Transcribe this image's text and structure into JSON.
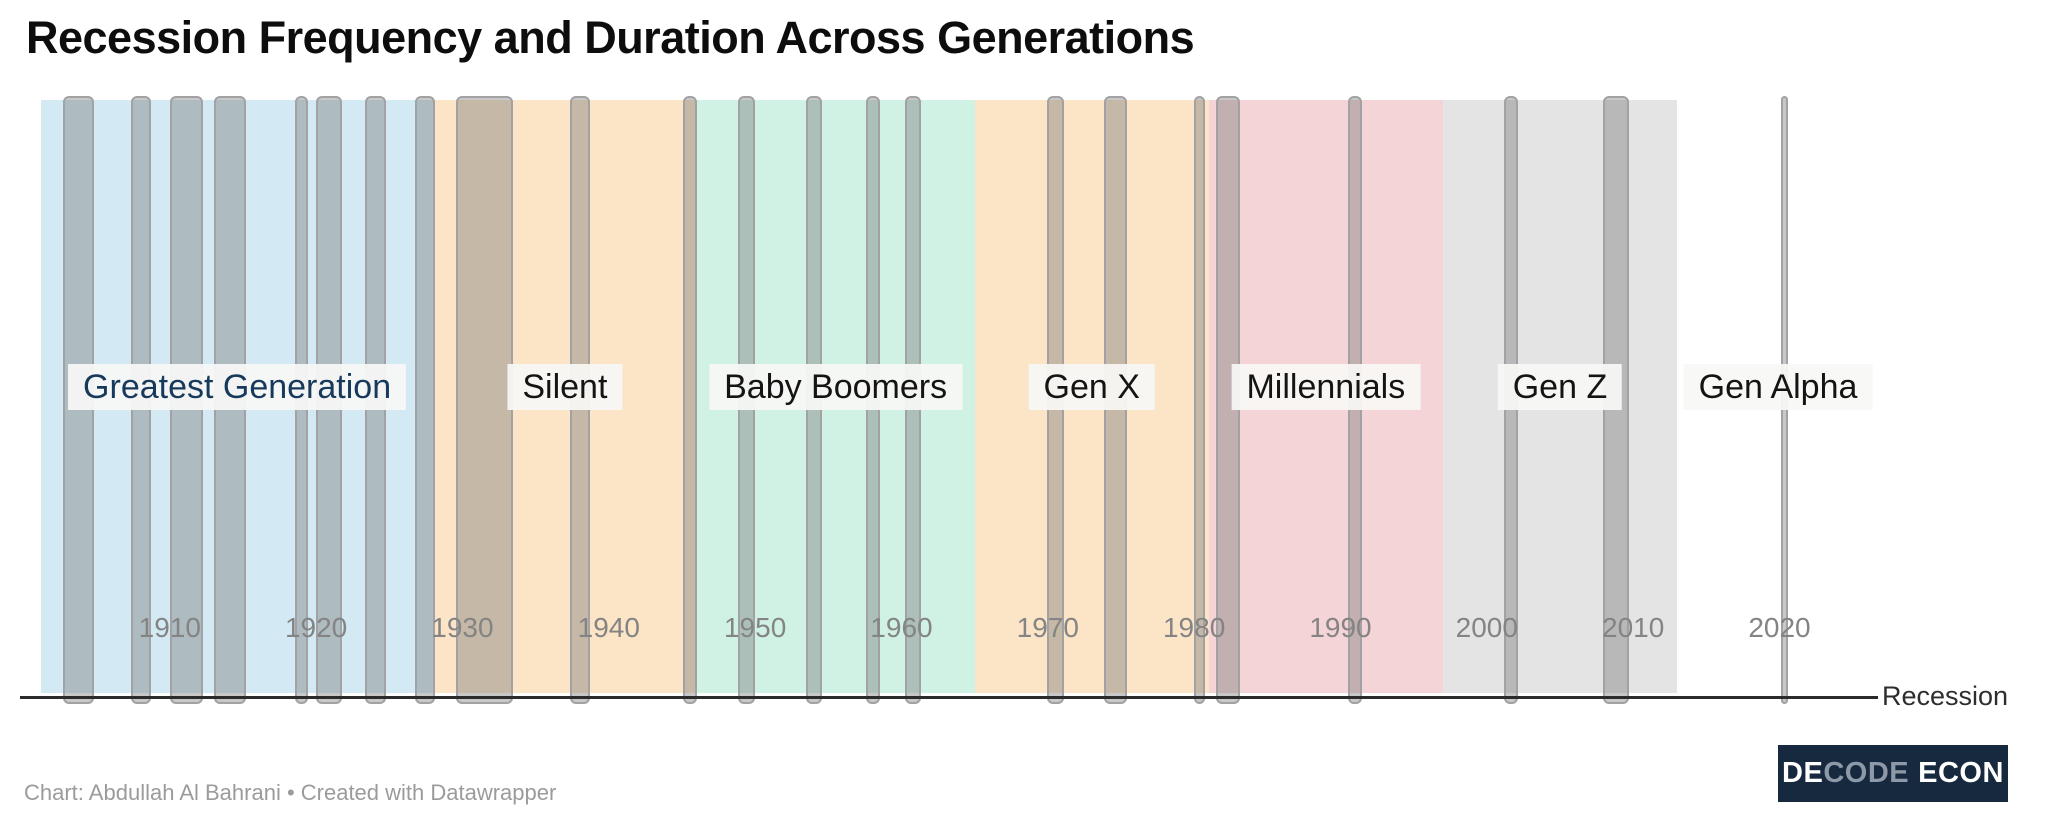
{
  "title": "Recession Frequency and Duration Across Generations",
  "footer": {
    "credit": "Chart: Abdullah Al Bahrani • Created with Datawrapper"
  },
  "logo": {
    "part_de": "DE",
    "part_code": "CODE",
    "part_econ": "ECON",
    "background": "#16293f"
  },
  "chart_data": {
    "type": "bar",
    "subtype": "timeline-span-chart",
    "title": "Recession Frequency and Duration Across Generations",
    "series_label": "Recession",
    "x_domain": [
      1901.2,
      2026.8
    ],
    "x_ticks": [
      1910,
      1920,
      1930,
      1940,
      1950,
      1960,
      1970,
      1980,
      1990,
      2000,
      2010,
      2020
    ],
    "grid": false,
    "legend_position": "axis-end-right",
    "recession_style": {
      "fill": "rgba(125,125,125,0.42)",
      "border": "#a2a2a4"
    },
    "generations": [
      {
        "name": "greatest-generation",
        "label": "Greatest Generation",
        "start": 1901,
        "end": 1928,
        "band_color": "#d3e9f3",
        "label_color": "#16395c"
      },
      {
        "name": "silent",
        "label": "Silent",
        "start": 1928,
        "end": 1946,
        "band_color": "#fce4c7",
        "label_color": "#141414"
      },
      {
        "name": "baby-boomers",
        "label": "Baby Boomers",
        "start": 1946,
        "end": 1965,
        "band_color": "#cff2e5",
        "label_color": "#141414"
      },
      {
        "name": "gen-x",
        "label": "Gen X",
        "start": 1965,
        "end": 1981,
        "band_color": "#fce4c7",
        "label_color": "#141414"
      },
      {
        "name": "millennials",
        "label": "Millennials",
        "start": 1981,
        "end": 1997,
        "band_color": "#f4d4d6",
        "label_color": "#141414"
      },
      {
        "name": "gen-z",
        "label": "Gen Z",
        "start": 1997,
        "end": 2013,
        "band_color": "#e4e4e4",
        "label_color": "#141414"
      },
      {
        "name": "gen-alpha",
        "label": "Gen Alpha",
        "start": 2013,
        "end": 2027,
        "band_color": null,
        "label_color": "#141414"
      }
    ],
    "recessions": [
      {
        "start": 1902.67,
        "end": 1904.58
      },
      {
        "start": 1907.33,
        "end": 1908.42
      },
      {
        "start": 1910.0,
        "end": 1912.0
      },
      {
        "start": 1913.0,
        "end": 1914.92
      },
      {
        "start": 1918.58,
        "end": 1919.17
      },
      {
        "start": 1920.0,
        "end": 1921.5
      },
      {
        "start": 1923.33,
        "end": 1924.5
      },
      {
        "start": 1926.75,
        "end": 1927.83
      },
      {
        "start": 1929.58,
        "end": 1933.17
      },
      {
        "start": 1937.33,
        "end": 1938.42
      },
      {
        "start": 1945.08,
        "end": 1945.75
      },
      {
        "start": 1948.83,
        "end": 1949.75
      },
      {
        "start": 1953.5,
        "end": 1954.33
      },
      {
        "start": 1957.58,
        "end": 1958.25
      },
      {
        "start": 1960.25,
        "end": 1961.08
      },
      {
        "start": 1969.92,
        "end": 1970.83
      },
      {
        "start": 1973.83,
        "end": 1975.17
      },
      {
        "start": 1980.0,
        "end": 1980.5
      },
      {
        "start": 1981.5,
        "end": 1982.83
      },
      {
        "start": 1990.5,
        "end": 1991.17
      },
      {
        "start": 2001.17,
        "end": 2001.83
      },
      {
        "start": 2007.92,
        "end": 2009.42
      },
      {
        "start": 2020.08,
        "end": 2020.33
      }
    ]
  }
}
